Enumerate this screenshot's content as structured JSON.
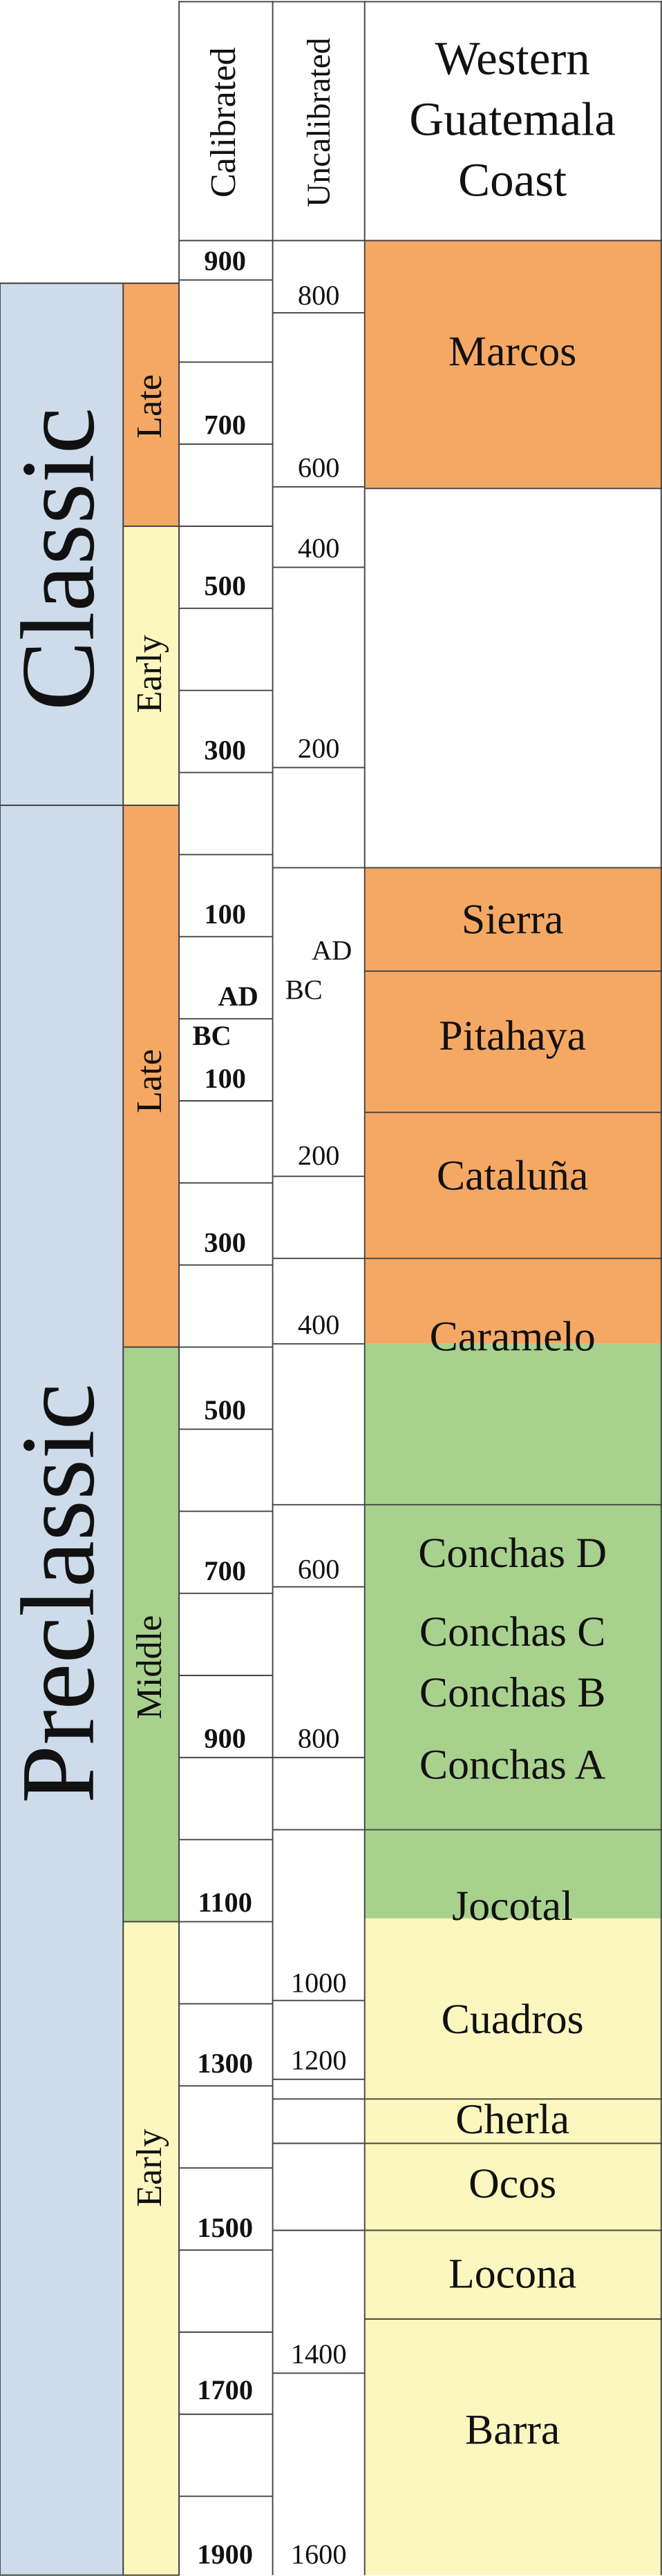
{
  "header": {
    "calibrated": "Calibrated",
    "uncalibrated": "Uncalibrated",
    "region": [
      "Western",
      "Guatemala",
      "Coast"
    ]
  },
  "periods": [
    {
      "label": "Classic",
      "subperiods": [
        "Late",
        "Early"
      ]
    },
    {
      "label": "Preclassic",
      "subperiods": [
        "Late",
        "Middle",
        "Early"
      ]
    }
  ],
  "calibrated": [
    "900",
    "700",
    "500",
    "300",
    "100",
    "AD",
    "BC",
    "100",
    "300",
    "500",
    "700",
    "900",
    "1100",
    "1300",
    "1500",
    "1700",
    "1900"
  ],
  "uncalibrated": [
    "800",
    "600",
    "400",
    "200",
    "AD",
    "BC",
    "200",
    "400",
    "600",
    "800",
    "1000",
    "1200",
    "1400",
    "1600"
  ],
  "phases": [
    "Marcos",
    "Sierra",
    "Pitahaya",
    "Cataluña",
    "Caramelo",
    "Conchas D",
    "Conchas C",
    "Conchas B",
    "Conchas A",
    "Jocotal",
    "Cuadros",
    "Cherla",
    "Ocos",
    "Locona",
    "Barra"
  ]
}
